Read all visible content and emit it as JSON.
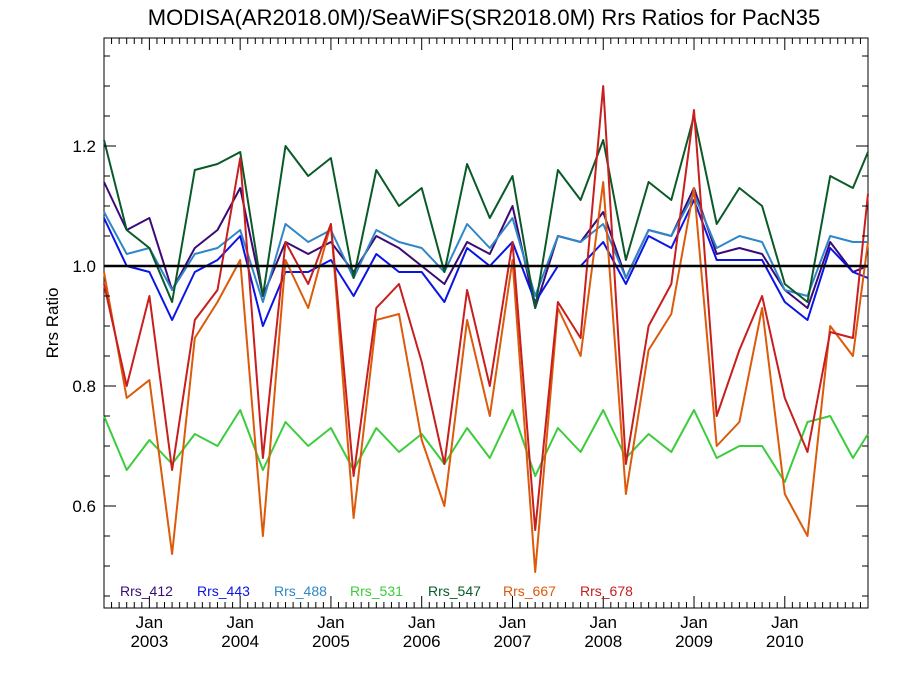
{
  "chart_data": {
    "type": "line",
    "title": "MODISA(AR2018.0M)/SeaWiFS(SR2018.0M)  Rrs Ratios for PacN35",
    "ylabel": "Rrs Ratio",
    "xlabel": "",
    "xlim": [
      "2002-07",
      "2010-12"
    ],
    "ylim": [
      0.43,
      1.38
    ],
    "yticks": [
      0.6,
      0.8,
      1.0,
      1.2
    ],
    "ytick_labels": [
      "0.6",
      "0.8",
      "1.0",
      "1.2"
    ],
    "xticks": [
      "2003-01",
      "2004-01",
      "2005-01",
      "2006-01",
      "2007-01",
      "2008-01",
      "2009-01",
      "2010-01"
    ],
    "xtick_month_labels": [
      "Jan",
      "Jan",
      "Jan",
      "Jan",
      "Jan",
      "Jan",
      "Jan",
      "Jan"
    ],
    "xtick_year_labels": [
      "2003",
      "2004",
      "2005",
      "2006",
      "2007",
      "2008",
      "2009",
      "2010"
    ],
    "reference_line": 1.0,
    "reference_color": "#000000",
    "grid": false,
    "legend_position": "bottom-left",
    "series": [
      {
        "name": "Rrs_412",
        "color": "#3c0a78",
        "points": [
          [
            "2002-07",
            1.14
          ],
          [
            "2002-10",
            1.06
          ],
          [
            "2003-01",
            1.08
          ],
          [
            "2003-04",
            0.96
          ],
          [
            "2003-07",
            1.03
          ],
          [
            "2003-10",
            1.06
          ],
          [
            "2004-01",
            1.13
          ],
          [
            "2004-04",
            0.95
          ],
          [
            "2004-07",
            1.04
          ],
          [
            "2004-10",
            1.02
          ],
          [
            "2005-01",
            1.04
          ],
          [
            "2005-04",
            0.99
          ],
          [
            "2005-07",
            1.05
          ],
          [
            "2005-10",
            1.03
          ],
          [
            "2006-01",
            1.0
          ],
          [
            "2006-04",
            0.97
          ],
          [
            "2006-07",
            1.04
          ],
          [
            "2006-10",
            1.02
          ],
          [
            "2007-01",
            1.1
          ],
          [
            "2007-04",
            0.93
          ],
          [
            "2007-07",
            1.05
          ],
          [
            "2007-10",
            1.04
          ],
          [
            "2008-01",
            1.09
          ],
          [
            "2008-04",
            0.98
          ],
          [
            "2008-07",
            1.06
          ],
          [
            "2008-10",
            1.05
          ],
          [
            "2009-01",
            1.13
          ],
          [
            "2009-04",
            1.02
          ],
          [
            "2009-07",
            1.03
          ],
          [
            "2009-10",
            1.02
          ],
          [
            "2010-01",
            0.96
          ],
          [
            "2010-04",
            0.93
          ],
          [
            "2010-07",
            1.04
          ],
          [
            "2010-10",
            0.99
          ],
          [
            "2010-12",
            1.0
          ]
        ]
      },
      {
        "name": "Rrs_443",
        "color": "#0a14e6",
        "points": [
          [
            "2002-07",
            1.08
          ],
          [
            "2002-10",
            1.0
          ],
          [
            "2003-01",
            0.99
          ],
          [
            "2003-04",
            0.91
          ],
          [
            "2003-07",
            0.99
          ],
          [
            "2003-10",
            1.01
          ],
          [
            "2004-01",
            1.05
          ],
          [
            "2004-04",
            0.9
          ],
          [
            "2004-07",
            0.99
          ],
          [
            "2004-10",
            0.99
          ],
          [
            "2005-01",
            1.01
          ],
          [
            "2005-04",
            0.95
          ],
          [
            "2005-07",
            1.02
          ],
          [
            "2005-10",
            0.99
          ],
          [
            "2006-01",
            0.99
          ],
          [
            "2006-04",
            0.94
          ],
          [
            "2006-07",
            1.03
          ],
          [
            "2006-10",
            1.0
          ],
          [
            "2007-01",
            1.04
          ],
          [
            "2007-04",
            0.94
          ],
          [
            "2007-07",
            1.0
          ],
          [
            "2007-10",
            1.0
          ],
          [
            "2008-01",
            1.04
          ],
          [
            "2008-04",
            0.97
          ],
          [
            "2008-07",
            1.05
          ],
          [
            "2008-10",
            1.03
          ],
          [
            "2009-01",
            1.11
          ],
          [
            "2009-04",
            1.01
          ],
          [
            "2009-07",
            1.01
          ],
          [
            "2009-10",
            1.01
          ],
          [
            "2010-01",
            0.94
          ],
          [
            "2010-04",
            0.91
          ],
          [
            "2010-07",
            1.03
          ],
          [
            "2010-10",
            0.99
          ],
          [
            "2010-12",
            0.98
          ]
        ]
      },
      {
        "name": "Rrs_488",
        "color": "#2f86c8",
        "points": [
          [
            "2002-07",
            1.09
          ],
          [
            "2002-10",
            1.02
          ],
          [
            "2003-01",
            1.03
          ],
          [
            "2003-04",
            0.96
          ],
          [
            "2003-07",
            1.02
          ],
          [
            "2003-10",
            1.03
          ],
          [
            "2004-01",
            1.06
          ],
          [
            "2004-04",
            0.94
          ],
          [
            "2004-07",
            1.07
          ],
          [
            "2004-10",
            1.04
          ],
          [
            "2005-01",
            1.06
          ],
          [
            "2005-04",
            0.98
          ],
          [
            "2005-07",
            1.06
          ],
          [
            "2005-10",
            1.04
          ],
          [
            "2006-01",
            1.03
          ],
          [
            "2006-04",
            0.99
          ],
          [
            "2006-07",
            1.07
          ],
          [
            "2006-10",
            1.03
          ],
          [
            "2007-01",
            1.08
          ],
          [
            "2007-04",
            0.95
          ],
          [
            "2007-07",
            1.05
          ],
          [
            "2007-10",
            1.04
          ],
          [
            "2008-01",
            1.07
          ],
          [
            "2008-04",
            0.98
          ],
          [
            "2008-07",
            1.06
          ],
          [
            "2008-10",
            1.05
          ],
          [
            "2009-01",
            1.12
          ],
          [
            "2009-04",
            1.03
          ],
          [
            "2009-07",
            1.05
          ],
          [
            "2009-10",
            1.04
          ],
          [
            "2010-01",
            0.96
          ],
          [
            "2010-04",
            0.95
          ],
          [
            "2010-07",
            1.05
          ],
          [
            "2010-10",
            1.04
          ],
          [
            "2010-12",
            1.04
          ]
        ]
      },
      {
        "name": "Rrs_531",
        "color": "#3ccc3c",
        "points": [
          [
            "2002-07",
            0.75
          ],
          [
            "2002-10",
            0.66
          ],
          [
            "2003-01",
            0.71
          ],
          [
            "2003-04",
            0.67
          ],
          [
            "2003-07",
            0.72
          ],
          [
            "2003-10",
            0.7
          ],
          [
            "2004-01",
            0.76
          ],
          [
            "2004-04",
            0.66
          ],
          [
            "2004-07",
            0.74
          ],
          [
            "2004-10",
            0.7
          ],
          [
            "2005-01",
            0.73
          ],
          [
            "2005-04",
            0.66
          ],
          [
            "2005-07",
            0.73
          ],
          [
            "2005-10",
            0.69
          ],
          [
            "2006-01",
            0.72
          ],
          [
            "2006-04",
            0.67
          ],
          [
            "2006-07",
            0.73
          ],
          [
            "2006-10",
            0.68
          ],
          [
            "2007-01",
            0.76
          ],
          [
            "2007-04",
            0.65
          ],
          [
            "2007-07",
            0.73
          ],
          [
            "2007-10",
            0.69
          ],
          [
            "2008-01",
            0.76
          ],
          [
            "2008-04",
            0.68
          ],
          [
            "2008-07",
            0.72
          ],
          [
            "2008-10",
            0.69
          ],
          [
            "2009-01",
            0.76
          ],
          [
            "2009-04",
            0.68
          ],
          [
            "2009-07",
            0.7
          ],
          [
            "2009-10",
            0.7
          ],
          [
            "2010-01",
            0.64
          ],
          [
            "2010-04",
            0.74
          ],
          [
            "2010-07",
            0.75
          ],
          [
            "2010-10",
            0.68
          ],
          [
            "2010-12",
            0.72
          ]
        ]
      },
      {
        "name": "Rrs_547",
        "color": "#0a5a28",
        "points": [
          [
            "2002-07",
            1.21
          ],
          [
            "2002-10",
            1.06
          ],
          [
            "2003-01",
            1.03
          ],
          [
            "2003-04",
            0.94
          ],
          [
            "2003-07",
            1.16
          ],
          [
            "2003-10",
            1.17
          ],
          [
            "2004-01",
            1.19
          ],
          [
            "2004-04",
            0.95
          ],
          [
            "2004-07",
            1.2
          ],
          [
            "2004-10",
            1.15
          ],
          [
            "2005-01",
            1.18
          ],
          [
            "2005-04",
            0.98
          ],
          [
            "2005-07",
            1.16
          ],
          [
            "2005-10",
            1.1
          ],
          [
            "2006-01",
            1.13
          ],
          [
            "2006-04",
            0.99
          ],
          [
            "2006-07",
            1.17
          ],
          [
            "2006-10",
            1.08
          ],
          [
            "2007-01",
            1.15
          ],
          [
            "2007-04",
            0.93
          ],
          [
            "2007-07",
            1.16
          ],
          [
            "2007-10",
            1.11
          ],
          [
            "2008-01",
            1.21
          ],
          [
            "2008-04",
            1.01
          ],
          [
            "2008-07",
            1.14
          ],
          [
            "2008-10",
            1.11
          ],
          [
            "2009-01",
            1.25
          ],
          [
            "2009-04",
            1.07
          ],
          [
            "2009-07",
            1.13
          ],
          [
            "2009-10",
            1.1
          ],
          [
            "2010-01",
            0.97
          ],
          [
            "2010-04",
            0.94
          ],
          [
            "2010-07",
            1.15
          ],
          [
            "2010-10",
            1.13
          ],
          [
            "2010-12",
            1.19
          ]
        ]
      },
      {
        "name": "Rrs_667",
        "color": "#dc5a0a",
        "points": [
          [
            "2002-07",
            0.99
          ],
          [
            "2002-10",
            0.78
          ],
          [
            "2003-01",
            0.81
          ],
          [
            "2003-04",
            0.52
          ],
          [
            "2003-07",
            0.88
          ],
          [
            "2003-10",
            0.94
          ],
          [
            "2004-01",
            1.01
          ],
          [
            "2004-04",
            0.55
          ],
          [
            "2004-07",
            1.01
          ],
          [
            "2004-10",
            0.93
          ],
          [
            "2005-01",
            1.07
          ],
          [
            "2005-04",
            0.58
          ],
          [
            "2005-07",
            0.91
          ],
          [
            "2005-10",
            0.92
          ],
          [
            "2006-01",
            0.71
          ],
          [
            "2006-04",
            0.6
          ],
          [
            "2006-07",
            0.91
          ],
          [
            "2006-10",
            0.75
          ],
          [
            "2007-01",
            1.01
          ],
          [
            "2007-04",
            0.49
          ],
          [
            "2007-07",
            0.93
          ],
          [
            "2007-10",
            0.85
          ],
          [
            "2008-01",
            1.14
          ],
          [
            "2008-04",
            0.62
          ],
          [
            "2008-07",
            0.86
          ],
          [
            "2008-10",
            0.92
          ],
          [
            "2009-01",
            1.13
          ],
          [
            "2009-04",
            0.7
          ],
          [
            "2009-07",
            0.74
          ],
          [
            "2009-10",
            0.93
          ],
          [
            "2010-01",
            0.62
          ],
          [
            "2010-04",
            0.55
          ],
          [
            "2010-07",
            0.9
          ],
          [
            "2010-10",
            0.85
          ],
          [
            "2010-12",
            1.04
          ]
        ]
      },
      {
        "name": "Rrs_678",
        "color": "#c81e1e",
        "points": [
          [
            "2002-07",
            0.97
          ],
          [
            "2002-10",
            0.8
          ],
          [
            "2003-01",
            0.95
          ],
          [
            "2003-04",
            0.66
          ],
          [
            "2003-07",
            0.91
          ],
          [
            "2003-10",
            0.96
          ],
          [
            "2004-01",
            1.18
          ],
          [
            "2004-04",
            0.68
          ],
          [
            "2004-07",
            1.04
          ],
          [
            "2004-10",
            0.97
          ],
          [
            "2005-01",
            1.07
          ],
          [
            "2005-04",
            0.65
          ],
          [
            "2005-07",
            0.93
          ],
          [
            "2005-10",
            0.97
          ],
          [
            "2006-01",
            0.84
          ],
          [
            "2006-04",
            0.67
          ],
          [
            "2006-07",
            0.96
          ],
          [
            "2006-10",
            0.8
          ],
          [
            "2007-01",
            1.04
          ],
          [
            "2007-04",
            0.56
          ],
          [
            "2007-07",
            0.94
          ],
          [
            "2007-10",
            0.88
          ],
          [
            "2008-01",
            1.3
          ],
          [
            "2008-04",
            0.67
          ],
          [
            "2008-07",
            0.9
          ],
          [
            "2008-10",
            0.97
          ],
          [
            "2009-01",
            1.26
          ],
          [
            "2009-04",
            0.75
          ],
          [
            "2009-07",
            0.86
          ],
          [
            "2009-10",
            0.95
          ],
          [
            "2010-01",
            0.78
          ],
          [
            "2010-04",
            0.69
          ],
          [
            "2010-07",
            0.89
          ],
          [
            "2010-10",
            0.88
          ],
          [
            "2010-12",
            1.12
          ]
        ]
      }
    ]
  }
}
